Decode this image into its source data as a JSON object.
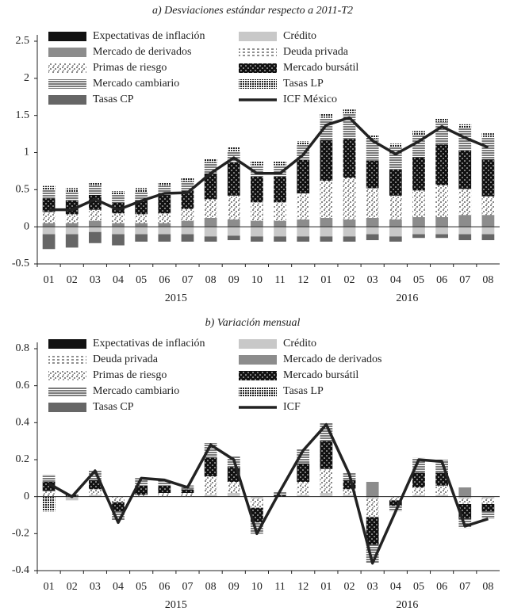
{
  "chart_data": [
    {
      "type": "bar",
      "stacked": true,
      "title": "a) Desviaciones estándar respecto a 2011-T2",
      "categories": [
        "01",
        "02",
        "03",
        "04",
        "05",
        "06",
        "07",
        "08",
        "09",
        "10",
        "11",
        "12",
        "01",
        "02",
        "03",
        "04",
        "05",
        "06",
        "07",
        "08"
      ],
      "groups": [
        "2015",
        "2016"
      ],
      "ylim": [
        -0.5,
        2.5
      ],
      "yticks": [
        -0.5,
        0.0,
        0.5,
        1.0,
        1.5,
        2.0,
        2.5
      ],
      "legend": "upper left",
      "series": [
        {
          "name": "Expectativas de inflación",
          "color": "#111",
          "pattern": "solid",
          "values": [
            0,
            0,
            0,
            0,
            0,
            0,
            0,
            0,
            0,
            0,
            0,
            0,
            0,
            0,
            0,
            0,
            0,
            0,
            0,
            0
          ]
        },
        {
          "name": "Crédito",
          "color": "#c8c8c8",
          "pattern": "solid",
          "values": [
            -0.1,
            -0.1,
            -0.07,
            -0.1,
            -0.1,
            -0.1,
            -0.1,
            -0.13,
            -0.12,
            -0.13,
            -0.13,
            -0.13,
            -0.13,
            -0.13,
            -0.1,
            -0.13,
            -0.1,
            -0.1,
            -0.1,
            -0.1
          ]
        },
        {
          "name": "Mercado de derivados",
          "color": "#8c8c8c",
          "pattern": "solid",
          "values": [
            0.05,
            0.05,
            0.08,
            0.05,
            0.05,
            0.05,
            0.08,
            0.12,
            0.1,
            0.08,
            0.08,
            0.1,
            0.12,
            0.1,
            0.12,
            0.1,
            0.13,
            0.13,
            0.16,
            0.16
          ]
        },
        {
          "name": "Deuda privada",
          "color": "#222",
          "pattern": "dashes",
          "values": [
            0,
            0,
            0,
            0,
            0,
            0,
            0,
            0,
            0,
            0,
            0,
            0,
            0,
            0,
            0,
            0,
            0,
            0,
            0,
            0
          ]
        },
        {
          "name": "Primas de riesgo",
          "color": "#222",
          "pattern": "speckle",
          "values": [
            0.15,
            0.12,
            0.15,
            0.13,
            0.12,
            0.13,
            0.16,
            0.25,
            0.32,
            0.25,
            0.25,
            0.35,
            0.5,
            0.56,
            0.4,
            0.32,
            0.36,
            0.43,
            0.35,
            0.25
          ]
        },
        {
          "name": "Mercado bursátil",
          "color": "#111",
          "pattern": "darkspeckle",
          "values": [
            0.18,
            0.18,
            0.2,
            0.15,
            0.18,
            0.25,
            0.25,
            0.35,
            0.45,
            0.35,
            0.35,
            0.45,
            0.55,
            0.52,
            0.37,
            0.35,
            0.45,
            0.55,
            0.52,
            0.5
          ]
        },
        {
          "name": "Mercado cambiario",
          "color": "#222",
          "pattern": "hlines",
          "values": [
            0.12,
            0.12,
            0.12,
            0.1,
            0.12,
            0.12,
            0.12,
            0.15,
            0.15,
            0.15,
            0.15,
            0.2,
            0.3,
            0.35,
            0.3,
            0.3,
            0.3,
            0.3,
            0.3,
            0.3
          ]
        },
        {
          "name": "Tasas LP",
          "color": "#222",
          "pattern": "grid",
          "values": [
            0.05,
            0.05,
            0.05,
            0.05,
            0.05,
            0.05,
            0.05,
            0.05,
            0.05,
            0.05,
            0.05,
            0.05,
            0.05,
            0.05,
            0.05,
            0.05,
            0.05,
            0.05,
            0.05,
            0.05
          ]
        },
        {
          "name": "Tasas CP",
          "color": "#666",
          "pattern": "solid",
          "values": [
            -0.2,
            -0.18,
            -0.15,
            -0.15,
            -0.1,
            -0.1,
            -0.1,
            -0.07,
            -0.06,
            -0.07,
            -0.07,
            -0.07,
            -0.07,
            -0.07,
            -0.08,
            -0.07,
            -0.05,
            -0.05,
            -0.08,
            -0.08
          ]
        },
        {
          "name": "ICF México",
          "type": "line",
          "color": "#222",
          "values": [
            0.23,
            0.23,
            0.37,
            0.23,
            0.35,
            0.45,
            0.46,
            0.72,
            0.93,
            0.72,
            0.72,
            0.97,
            1.37,
            1.47,
            1.16,
            0.98,
            1.15,
            1.35,
            1.2,
            1.07
          ]
        }
      ]
    },
    {
      "type": "bar",
      "stacked": true,
      "title": "b) Variación mensual",
      "categories": [
        "01",
        "02",
        "03",
        "04",
        "05",
        "06",
        "07",
        "08",
        "09",
        "10",
        "11",
        "12",
        "01",
        "02",
        "03",
        "04",
        "05",
        "06",
        "07",
        "08"
      ],
      "groups": [
        "2015",
        "2016"
      ],
      "ylim": [
        -0.4,
        0.8
      ],
      "yticks": [
        -0.4,
        -0.2,
        0,
        0.2,
        0.4,
        0.6,
        0.8
      ],
      "legend": "upper left",
      "series": [
        {
          "name": "Expectativas de inflación",
          "color": "#111",
          "pattern": "solid",
          "values": [
            0,
            0,
            0,
            0,
            0,
            0,
            0,
            0,
            0,
            0,
            0,
            0,
            0,
            0,
            0,
            0,
            0,
            0,
            0,
            0
          ]
        },
        {
          "name": "Crédito",
          "color": "#c8c8c8",
          "pattern": "solid",
          "values": [
            0,
            -0.02,
            0.01,
            0,
            0,
            0,
            0,
            0.01,
            0.02,
            -0.01,
            0,
            0.01,
            0.02,
            0.01,
            -0.01,
            0,
            0.01,
            0.01,
            -0.01,
            -0.01
          ]
        },
        {
          "name": "Deuda privada",
          "color": "#222",
          "pattern": "dashes",
          "values": [
            0,
            0,
            0,
            0,
            0,
            0,
            0,
            0,
            0,
            0,
            0,
            0,
            0,
            0,
            0,
            0,
            0,
            0,
            0,
            0
          ]
        },
        {
          "name": "Mercado de derivados",
          "color": "#8c8c8c",
          "pattern": "solid",
          "values": [
            0,
            0,
            0,
            0,
            0,
            0,
            0,
            0,
            0,
            0,
            0,
            0,
            0,
            0,
            0.08,
            0,
            0,
            0,
            0.05,
            0
          ]
        },
        {
          "name": "Primas de riesgo",
          "color": "#222",
          "pattern": "speckle",
          "values": [
            0.03,
            0,
            0.03,
            -0.03,
            0.01,
            0.02,
            0.02,
            0.1,
            0.06,
            -0.05,
            0,
            0.07,
            0.13,
            0.03,
            -0.1,
            -0.02,
            0.04,
            0.05,
            -0.03,
            -0.03
          ]
        },
        {
          "name": "Mercado bursátil",
          "color": "#111",
          "pattern": "darkspeckle",
          "values": [
            0.05,
            0.01,
            0.05,
            -0.05,
            0.05,
            0.04,
            0.02,
            0.1,
            0.08,
            -0.08,
            0.01,
            0.1,
            0.15,
            0.05,
            -0.15,
            -0.03,
            0.08,
            0.07,
            -0.08,
            -0.04
          ]
        },
        {
          "name": "Mercado cambiario",
          "color": "#222",
          "pattern": "hlines",
          "values": [
            0.04,
            0,
            0.05,
            -0.05,
            0.04,
            0.03,
            0.02,
            0.08,
            0.06,
            -0.06,
            0.02,
            0.08,
            0.1,
            0.04,
            -0.1,
            -0.03,
            0.08,
            0.07,
            -0.05,
            -0.04
          ]
        },
        {
          "name": "Tasas LP",
          "color": "#222",
          "pattern": "grid",
          "values": [
            -0.08,
            0,
            0,
            0,
            0,
            0,
            0,
            0,
            0,
            0,
            0,
            0,
            0,
            0,
            0,
            0,
            0,
            0,
            0,
            0
          ]
        },
        {
          "name": "Tasas CP",
          "color": "#666",
          "pattern": "solid",
          "values": [
            0,
            0,
            0,
            0,
            0,
            0,
            0,
            0,
            0,
            0,
            0,
            0,
            0,
            0,
            0,
            0,
            0,
            0,
            0,
            0
          ]
        },
        {
          "name": "ICF",
          "type": "line",
          "color": "#222",
          "values": [
            0.07,
            0,
            0.14,
            -0.14,
            0.1,
            0.09,
            0.05,
            0.28,
            0.2,
            -0.2,
            0.03,
            0.25,
            0.39,
            0.12,
            -0.36,
            -0.08,
            0.2,
            0.19,
            -0.16,
            -0.12
          ]
        }
      ]
    }
  ]
}
